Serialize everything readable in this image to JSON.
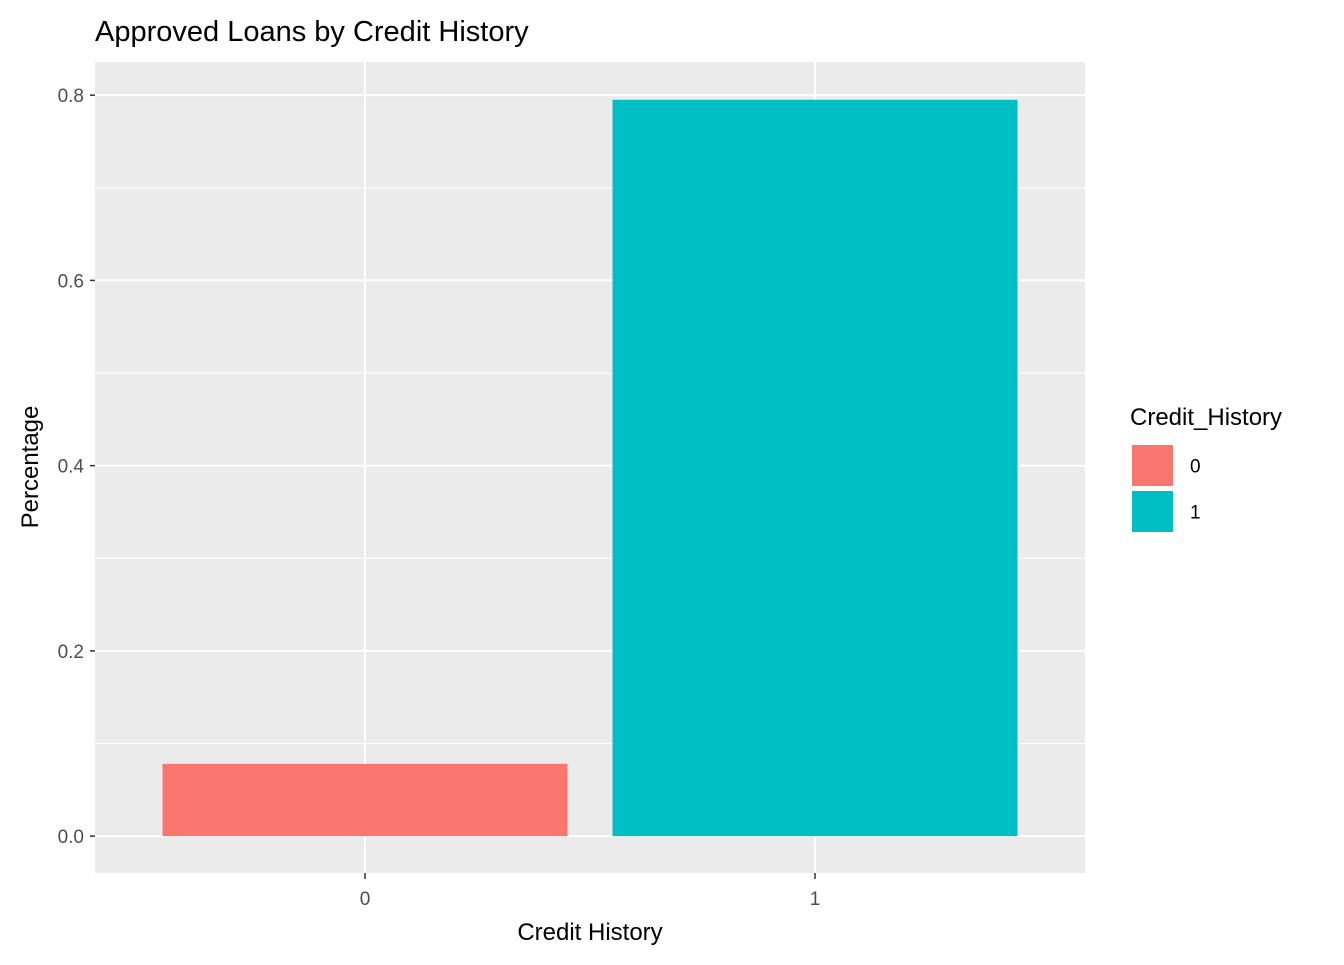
{
  "chart_data": {
    "type": "bar",
    "title": "Approved Loans by Credit History",
    "xlabel": "Credit History",
    "ylabel": "Percentage",
    "categories": [
      "0",
      "1"
    ],
    "values": [
      0.078,
      0.795
    ],
    "ylim": [
      -0.0398,
      0.8358
    ],
    "yticks": [
      0.0,
      0.2,
      0.4,
      0.6,
      0.8
    ],
    "ytick_labels": [
      "0.0",
      "0.2",
      "0.4",
      "0.6",
      "0.8"
    ],
    "grid": true,
    "panel_background": "#EBEBEB",
    "grid_color": "#FFFFFF",
    "colors": [
      "#F8766D",
      "#00BFC4"
    ],
    "legend": {
      "title": "Credit_History",
      "position": "right",
      "entries": [
        {
          "label": "0",
          "color": "#F8766D"
        },
        {
          "label": "1",
          "color": "#00BFC4"
        }
      ]
    }
  }
}
